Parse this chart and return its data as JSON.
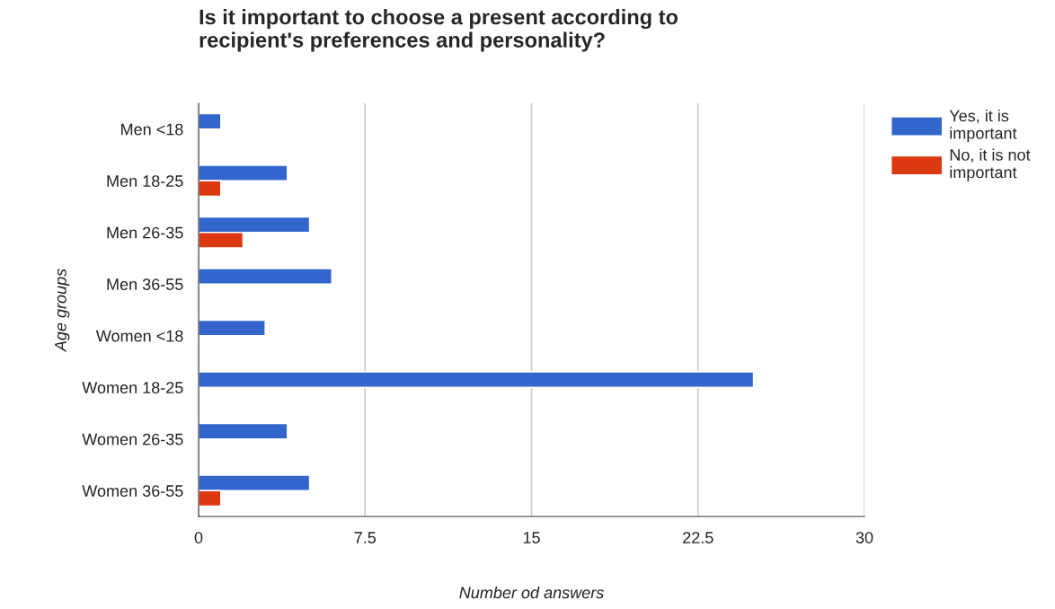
{
  "chart_data": {
    "type": "bar",
    "orientation": "horizontal",
    "title": "Is it important to choose a present according to\nrecipient's preferences and personality?",
    "xlabel": "Number od answers",
    "ylabel": "Age groups",
    "categories": [
      "Men <18",
      "Men 18-25",
      "Men 26-35",
      "Men 36-55",
      "Women <18",
      "Women 18-25",
      "Women 26-35",
      "Women 36-55"
    ],
    "series": [
      {
        "name": "Yes, it is\nimportant",
        "color": "#3366cc",
        "values": [
          1,
          4,
          5,
          6,
          3,
          25,
          4,
          5
        ]
      },
      {
        "name": "No, it is not\nimportant",
        "color": "#dc3912",
        "values": [
          null,
          1,
          2,
          null,
          null,
          null,
          null,
          1
        ]
      }
    ],
    "xlim": [
      0,
      30
    ],
    "xticks": [
      0,
      {
        "value": 7.5,
        "label": "7.5"
      },
      15,
      {
        "value": 22.5,
        "label": "22.5"
      },
      30
    ],
    "grid": "x",
    "legend": "top right"
  }
}
